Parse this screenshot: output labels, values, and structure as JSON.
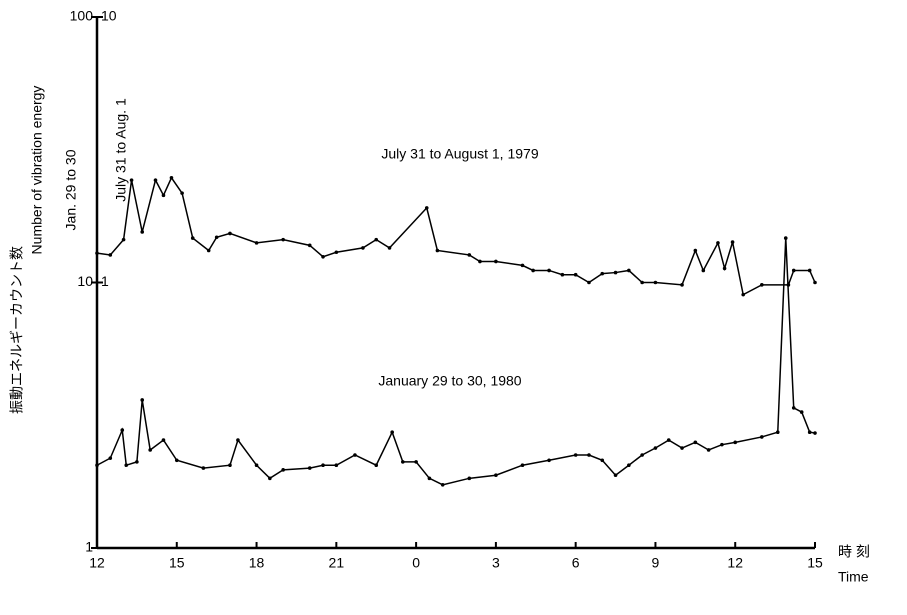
{
  "chart_data": {
    "type": "line",
    "y_label": [
      "振動エネルギーカウント数",
      "Number of vibration energy"
    ],
    "y2_label": [
      "Jan. 29 to 30",
      "July 31 to Aug. 1"
    ],
    "x_label": [
      "時 刻",
      "Time"
    ],
    "annotations": [
      "July 31 to August 1, 1979",
      "January 29 to 30, 1980"
    ],
    "xlim": [
      0,
      27
    ],
    "xticks": [
      {
        "value": 0,
        "label": "12"
      },
      {
        "value": 3,
        "label": "15"
      },
      {
        "value": 6,
        "label": "18"
      },
      {
        "value": 9,
        "label": "21"
      },
      {
        "value": 12,
        "label": "0"
      },
      {
        "value": 15,
        "label": "3"
      },
      {
        "value": 18,
        "label": "6"
      },
      {
        "value": 21,
        "label": "9"
      },
      {
        "value": 24,
        "label": "12"
      },
      {
        "value": 27,
        "label": "15"
      }
    ],
    "ylim": [
      1,
      100
    ],
    "yticks": [
      1,
      10,
      100
    ],
    "y2lim": [
      0.1,
      10
    ],
    "y2ticks": [
      1,
      10
    ],
    "log_scale": true,
    "series": [
      {
        "name": "July 31 to Aug. 1",
        "axis": "y2",
        "color": "#000000",
        "x": [
          0,
          0.5,
          1,
          1.3,
          1.7,
          2.2,
          2.5,
          2.8,
          3.2,
          3.6,
          4.2,
          4.5,
          5,
          6,
          7,
          8,
          8.5,
          9,
          10,
          10.5,
          11,
          12.4,
          12.8,
          14,
          14.4,
          15,
          16,
          16.4,
          17,
          17.5,
          18,
          18.5,
          19,
          19.5,
          20,
          20.5,
          21,
          22,
          22.5,
          22.8,
          23.35,
          23.6,
          23.9,
          24.3,
          25,
          26,
          26.2,
          26.8,
          27
        ],
        "values": [
          1.29,
          1.27,
          1.45,
          2.43,
          1.55,
          2.43,
          2.13,
          2.48,
          2.17,
          1.47,
          1.32,
          1.48,
          1.53,
          1.41,
          1.45,
          1.38,
          1.25,
          1.3,
          1.35,
          1.45,
          1.35,
          1.91,
          1.32,
          1.27,
          1.2,
          1.2,
          1.16,
          1.11,
          1.11,
          1.07,
          1.07,
          1.0,
          1.08,
          1.09,
          1.11,
          1.0,
          1.0,
          0.98,
          1.32,
          1.11,
          1.41,
          1.13,
          1.42,
          0.9,
          0.98,
          0.98,
          1.11,
          1.11,
          1.0
        ]
      },
      {
        "name": "Jan. 29 to 30",
        "color": "#000000",
        "x": [
          0,
          0.5,
          0.95,
          1.1,
          1.5,
          1.7,
          2,
          2.5,
          3,
          4,
          5,
          5.3,
          6,
          6.5,
          7,
          8,
          8.5,
          9,
          9.7,
          10.5,
          11.1,
          11.5,
          12,
          12.5,
          13,
          14,
          15,
          16,
          17,
          18,
          18.5,
          19,
          19.5,
          20,
          20.5,
          21,
          21.5,
          22,
          22.5,
          23,
          23.5,
          24,
          25,
          25.6,
          25.9,
          26.2,
          26.5,
          26.8,
          27
        ],
        "values": [
          2.05,
          2.18,
          2.78,
          2.05,
          2.11,
          3.61,
          2.34,
          2.55,
          2.14,
          2.0,
          2.05,
          2.55,
          2.05,
          1.83,
          1.97,
          2.0,
          2.05,
          2.05,
          2.24,
          2.05,
          2.73,
          2.11,
          2.11,
          1.83,
          1.73,
          1.83,
          1.88,
          2.05,
          2.14,
          2.24,
          2.24,
          2.14,
          1.88,
          2.05,
          2.24,
          2.38,
          2.55,
          2.38,
          2.5,
          2.34,
          2.45,
          2.5,
          2.62,
          2.73,
          14.7,
          3.37,
          3.25,
          2.73,
          2.71
        ]
      }
    ]
  }
}
